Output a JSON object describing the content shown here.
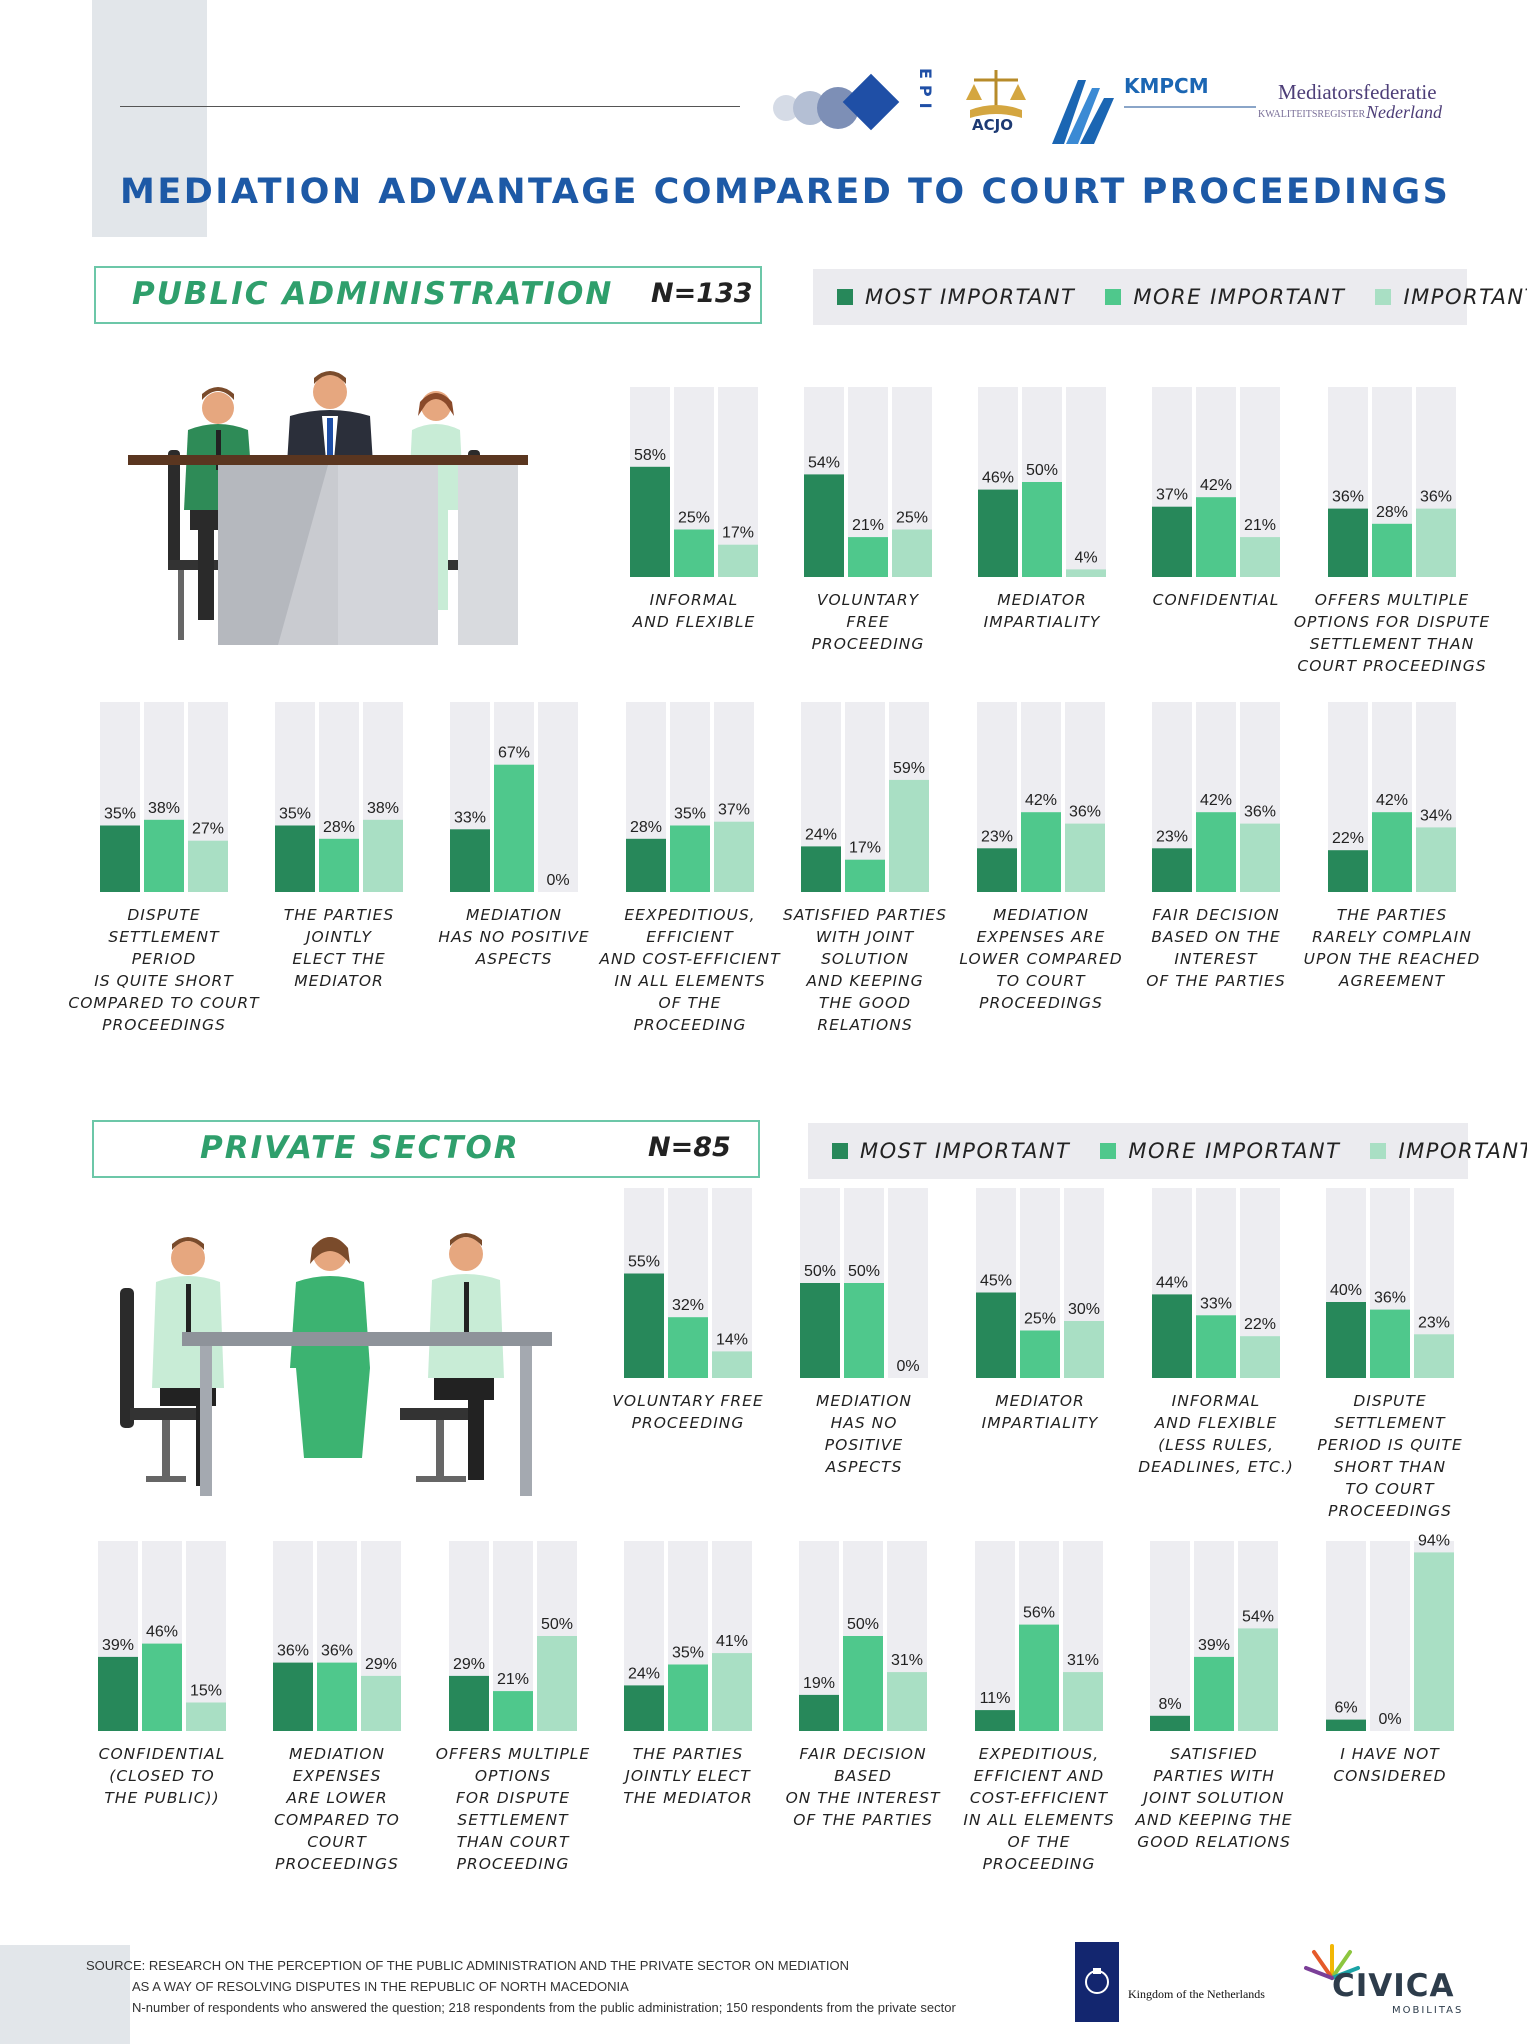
{
  "header": {
    "title": "MEDIATION ADVANTAGE COMPARED TO COURT PROCEEDINGS",
    "logos": {
      "epi": "EPI",
      "acjo": "ACJO",
      "kmpcm": "KMPCM",
      "mediators_line1": "Mediatorsfederatie",
      "mediators_line2_left": "KWALITEITSREGISTER",
      "mediators_line2_right": "Nederland"
    }
  },
  "legend": {
    "most_important": "MOST IMPORTANT",
    "more_important": "MORE IMPORTANT",
    "important": "IMPORTANT"
  },
  "colors": {
    "most_important": "#27885a",
    "more_important": "#4fc88c",
    "important": "#a9dfc4",
    "track": "#ededf1",
    "title_blue": "#1d59a6",
    "section_green": "#2f9f6c"
  },
  "sections": {
    "public": {
      "name": "PUBLIC ADMINISTRATION",
      "n": "N=133"
    },
    "private": {
      "name": "PRIVATE SECTOR",
      "n": "N=85"
    }
  },
  "chart_data": [
    {
      "type": "bar",
      "section": "PUBLIC ADMINISTRATION",
      "series_names": [
        "MOST IMPORTANT",
        "MORE IMPORTANT",
        "IMPORTANT"
      ],
      "ylim": [
        0,
        100
      ],
      "groups": [
        {
          "label": [
            "INFORMAL",
            "AND FLEXIBLE"
          ],
          "values": [
            58,
            25,
            17
          ]
        },
        {
          "label": [
            "VOLUNTARY",
            "FREE",
            "PROCEEDING"
          ],
          "values": [
            54,
            21,
            25
          ]
        },
        {
          "label": [
            "MEDIATOR",
            "IMPARTIALITY"
          ],
          "values": [
            46,
            50,
            4
          ]
        },
        {
          "label": [
            "CONFIDENTIAL"
          ],
          "values": [
            37,
            42,
            21
          ]
        },
        {
          "label": [
            "OFFERS MULTIPLE",
            "OPTIONS FOR DISPUTE",
            "SETTLEMENT THAN",
            "COURT PROCEEDINGS"
          ],
          "values": [
            36,
            28,
            36
          ]
        },
        {
          "label": [
            "DISPUTE",
            "SETTLEMENT",
            "PERIOD",
            "IS QUITE SHORT",
            "COMPARED TO COURT",
            "PROCEEDINGS"
          ],
          "values": [
            35,
            38,
            27
          ]
        },
        {
          "label": [
            "THE PARTIES",
            "JOINTLY",
            "ELECT THE",
            "MEDIATOR"
          ],
          "values": [
            35,
            28,
            38
          ]
        },
        {
          "label": [
            "MEDIATION",
            "HAS NO POSITIVE",
            "ASPECTS"
          ],
          "values": [
            33,
            67,
            0
          ]
        },
        {
          "label": [
            "EEXPEDITIOUS,",
            "EFFICIENT",
            "AND COST-EFFICIENT",
            "IN ALL ELEMENTS",
            "OF THE",
            "PROCEEDING"
          ],
          "values": [
            28,
            35,
            37
          ]
        },
        {
          "label": [
            "SATISFIED PARTIES",
            "WITH JOINT",
            "SOLUTION",
            "AND KEEPING",
            "THE GOOD",
            "RELATIONS"
          ],
          "values": [
            24,
            17,
            59
          ]
        },
        {
          "label": [
            "MEDIATION",
            "EXPENSES ARE",
            "LOWER COMPARED",
            "TO COURT",
            "PROCEEDINGS"
          ],
          "values": [
            23,
            42,
            36
          ]
        },
        {
          "label": [
            "FAIR DECISION",
            "BASED ON THE",
            "INTEREST",
            "OF THE PARTIES"
          ],
          "values": [
            23,
            42,
            36
          ]
        },
        {
          "label": [
            "THE PARTIES",
            "RARELY COMPLAIN",
            "UPON THE REACHED",
            "AGREEMENT"
          ],
          "values": [
            22,
            42,
            34
          ]
        }
      ]
    },
    {
      "type": "bar",
      "section": "PRIVATE SECTOR",
      "series_names": [
        "MOST IMPORTANT",
        "MORE IMPORTANT",
        "IMPORTANT"
      ],
      "ylim": [
        0,
        100
      ],
      "groups": [
        {
          "label": [
            "VOLUNTARY FREE",
            "PROCEEDING"
          ],
          "values": [
            55,
            32,
            14
          ]
        },
        {
          "label": [
            "MEDIATION",
            "HAS NO",
            "POSITIVE",
            "ASPECTS"
          ],
          "values": [
            50,
            50,
            0
          ]
        },
        {
          "label": [
            "MEDIATOR",
            "IMPARTIALITY"
          ],
          "values": [
            45,
            25,
            30
          ]
        },
        {
          "label": [
            "INFORMAL",
            "AND FLEXIBLE",
            "(LESS RULES,",
            "DEADLINES, ETC.)"
          ],
          "values": [
            44,
            33,
            22
          ]
        },
        {
          "label": [
            "DISPUTE",
            "SETTLEMENT",
            "PERIOD IS QUITE",
            "SHORT THAN",
            "TO COURT",
            "PROCEEDINGS"
          ],
          "values": [
            40,
            36,
            23
          ]
        },
        {
          "label": [
            "CONFIDENTIAL",
            "(CLOSED TO",
            "THE PUBLIC))"
          ],
          "values": [
            39,
            46,
            15
          ]
        },
        {
          "label": [
            "MEDIATION",
            "EXPENSES",
            "ARE LOWER",
            "COMPARED TO",
            "COURT",
            "PROCEEDINGS"
          ],
          "values": [
            36,
            36,
            29
          ]
        },
        {
          "label": [
            "OFFERS MULTIPLE",
            "OPTIONS",
            "FOR DISPUTE",
            "SETTLEMENT",
            "THAN COURT",
            "PROCEEDING"
          ],
          "values": [
            29,
            21,
            50
          ]
        },
        {
          "label": [
            "THE PARTIES",
            "JOINTLY ELECT",
            "THE MEDIATOR"
          ],
          "values": [
            24,
            35,
            41
          ]
        },
        {
          "label": [
            "FAIR DECISION",
            "BASED",
            "ON THE INTEREST",
            "OF THE PARTIES"
          ],
          "values": [
            19,
            50,
            31
          ]
        },
        {
          "label": [
            "EXPEDITIOUS,",
            "EFFICIENT AND",
            "COST-EFFICIENT",
            "IN ALL ELEMENTS",
            "OF THE",
            "PROCEEDING"
          ],
          "values": [
            11,
            56,
            31
          ]
        },
        {
          "label": [
            "SATISFIED",
            "PARTIES WITH",
            "JOINT SOLUTION",
            "AND KEEPING THE",
            "GOOD RELATIONS"
          ],
          "values": [
            8,
            39,
            54
          ]
        },
        {
          "label": [
            "I HAVE NOT",
            "CONSIDERED"
          ],
          "values": [
            6,
            0,
            94
          ]
        }
      ]
    }
  ],
  "footer": {
    "source_label": "SOURCE:",
    "source_line1": "RESEARCH ON THE PERCEPTION OF THE PUBLIC ADMINISTRATION AND THE PRIVATE SECTOR ON MEDIATION",
    "source_line2": "AS A WAY OF RESOLVING DISPUTES IN THE REPUBLIC OF NORTH MACEDONIA",
    "source_line3": "N-number of respondents who answered the question; 218 respondents from the public administration; 150 respondents from the private sector",
    "netherlands": "Kingdom of the Netherlands",
    "civica": "CIVICA",
    "civica_sub": "MOBILITAS"
  }
}
